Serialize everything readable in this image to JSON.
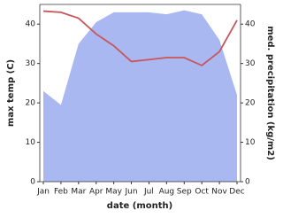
{
  "chart_data": {
    "type": "line-area",
    "x_label": "date (month)",
    "y_label": "max temp (C)",
    "y2_label": "med. precipitation (kg/m2)",
    "categories": [
      "Jan",
      "Feb",
      "Mar",
      "Apr",
      "May",
      "Jun",
      "Jul",
      "Aug",
      "Sep",
      "Oct",
      "Nov",
      "Dec"
    ],
    "series": [
      {
        "name": "max temp",
        "color": "#c8555a",
        "type": "line",
        "axis": "y",
        "values": [
          43.3,
          43,
          41.5,
          37.5,
          34.5,
          30.5,
          31,
          31.5,
          31.5,
          29.5,
          33,
          41
        ]
      },
      {
        "name": "med. precipitation",
        "color": "#aab8f2",
        "type": "area",
        "axis": "y2",
        "values": [
          23,
          19.5,
          35,
          40.5,
          43,
          43,
          43,
          42.5,
          43.5,
          42.5,
          36,
          22
        ]
      }
    ],
    "ylim": [
      0,
      45
    ],
    "yticks": [
      0,
      10,
      20,
      30,
      40
    ],
    "y2lim": [
      0,
      45
    ],
    "y2ticks": [
      0,
      10,
      20,
      30,
      40
    ]
  }
}
